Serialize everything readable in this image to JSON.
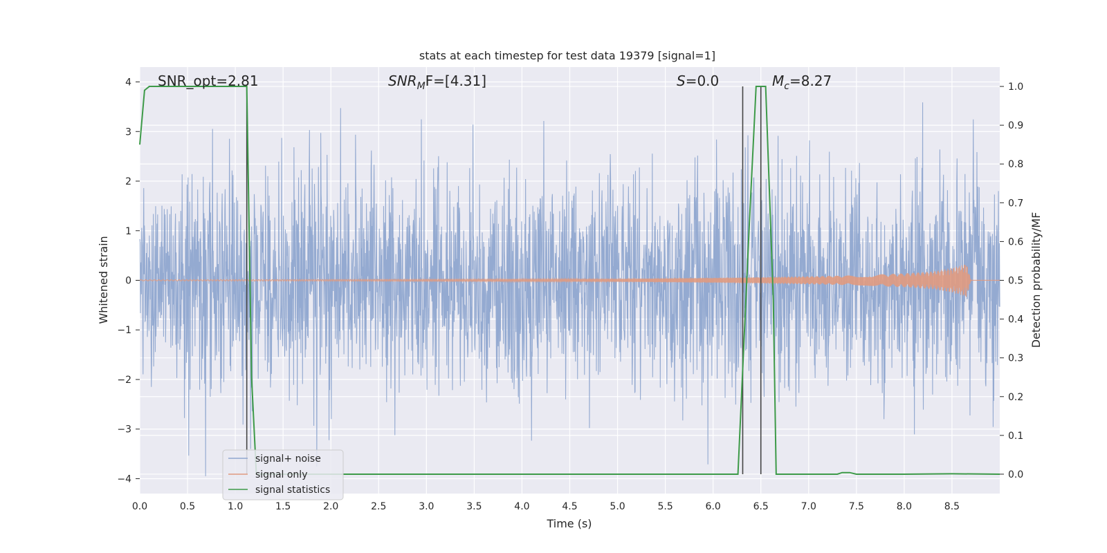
{
  "chart_data": {
    "type": "line",
    "title": "stats at each timestep for test data 19379 [signal=1]",
    "xlabel": "Time (s)",
    "ylabel_left": "Whitened strain",
    "ylabel_right": "Detection probability/MF",
    "xlim": [
      0,
      9.0
    ],
    "ylim_left": [
      -4.3,
      4.3
    ],
    "ylim_right": [
      -0.05,
      1.05
    ],
    "xticks": [
      "0.0",
      "0.5",
      "1.0",
      "1.5",
      "2.0",
      "2.5",
      "3.0",
      "3.5",
      "4.0",
      "4.5",
      "5.0",
      "5.5",
      "6.0",
      "6.5",
      "7.0",
      "7.5",
      "8.0",
      "8.5"
    ],
    "yticks_left": [
      "4",
      "3",
      "2",
      "1",
      "0",
      "−1",
      "−2",
      "−3",
      "−4"
    ],
    "yticks_right": [
      "1.0",
      "0.9",
      "0.8",
      "0.7",
      "0.6",
      "0.5",
      "0.4",
      "0.3",
      "0.2",
      "0.1",
      "0.0"
    ],
    "grid": true,
    "legend_position": "bottom-left",
    "annotations": {
      "snr_opt": "SNR_opt=2.81",
      "snr_mf_main": "SNR",
      "snr_mf_sub": "M",
      "snr_mf_rest": "F=[4.31]",
      "s_main": "S",
      "s_rest": "=0.0",
      "mc_main": "M",
      "mc_sub": "c",
      "mc_rest": "=8.27"
    },
    "series": [
      {
        "name": "signal+ noise",
        "color": "#8fa6cf",
        "description_of_values": "whitened strain noise, roughly Gaussian, amplitude within about -4 to 4",
        "duration_s": 9.0
      },
      {
        "name": "signal only",
        "color": "#e09a80",
        "envelope": {
          "x": [
            0,
            5.0,
            6.0,
            7.0,
            7.5,
            8.0,
            8.3,
            8.5,
            8.6,
            8.65,
            8.7,
            9.0
          ],
          "y": [
            0.01,
            0.03,
            0.05,
            0.08,
            0.1,
            0.14,
            0.18,
            0.25,
            0.3,
            0.35,
            0.0,
            0.0
          ]
        }
      },
      {
        "name": "signal statistics",
        "color": "#3d9a48",
        "x": [
          0.0,
          0.05,
          0.1,
          0.2,
          0.5,
          1.0,
          1.1,
          1.12,
          1.17,
          1.22,
          2.0,
          5.0,
          6.0,
          6.26,
          6.38,
          6.45,
          6.55,
          6.63,
          6.66,
          7.0,
          7.3,
          7.35,
          7.43,
          7.5,
          8.0,
          8.5,
          9.0
        ],
        "y": [
          0.85,
          0.99,
          1.0,
          1.0,
          1.0,
          1.0,
          1.0,
          1.0,
          0.25,
          0.0,
          0.0,
          0.0,
          0.0,
          0.0,
          0.65,
          1.0,
          1.0,
          0.45,
          0.0,
          0.0,
          0.0,
          0.004,
          0.004,
          0.0,
          0.0,
          0.001,
          0.0
        ]
      }
    ],
    "vertical_lines_x": [
      1.12,
      6.31,
      6.5
    ]
  }
}
